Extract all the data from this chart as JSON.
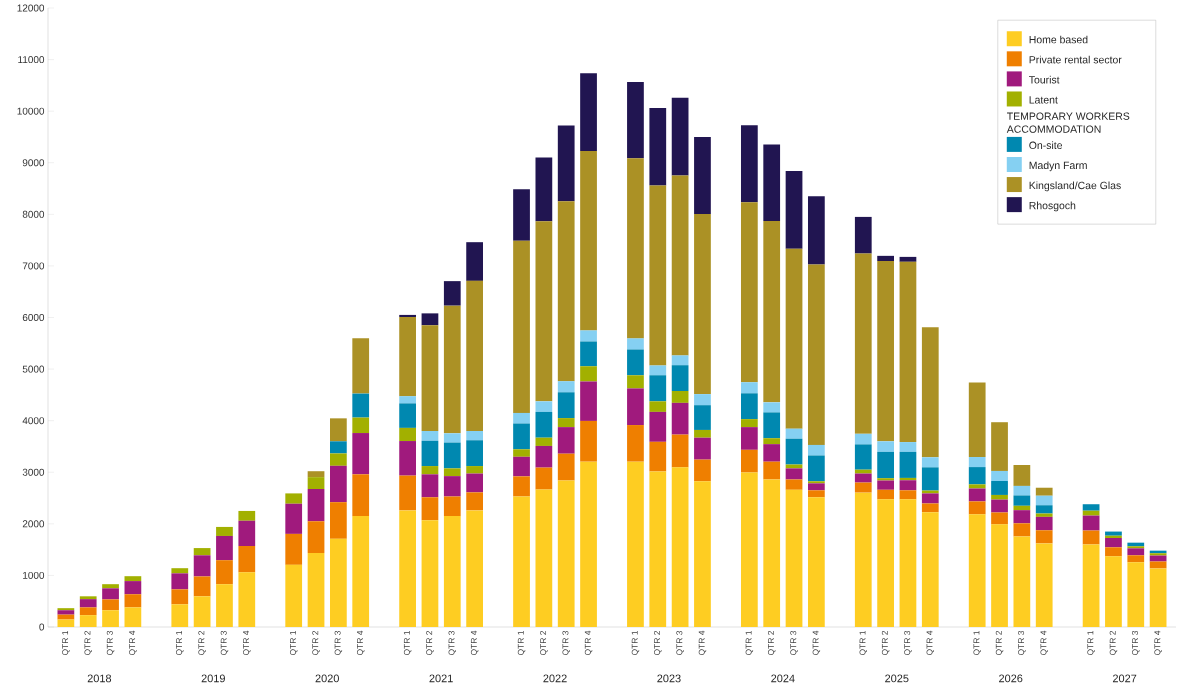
{
  "chart_data": {
    "type": "bar",
    "stacked": true,
    "categories": [
      "QTR 1",
      "QTR 2",
      "QTR 3",
      "QTR 4",
      "QTR 1",
      "QTR 2",
      "QTR 3",
      "QTR 4",
      "QTR 1",
      "QTR 2",
      "QTR 3",
      "QTR 4",
      "QTR 1",
      "QTR 2",
      "QTR 3",
      "QTR 4",
      "QTR 1",
      "QTR 2",
      "QTR 3",
      "QTR 4",
      "QTR 1",
      "QTR 2",
      "QTR 3",
      "QTR 4",
      "QTR 1",
      "QTR 2",
      "QTR 3",
      "QTR 4",
      "QTR 1",
      "QTR 2",
      "QTR 3",
      "QTR 4",
      "QTR 1",
      "QTR 2",
      "QTR 3",
      "QTR 4",
      "QTR 1",
      "QTR 2",
      "QTR 3",
      "QTR 4"
    ],
    "series": [
      {
        "name": "Home based",
        "color": "#fecd22",
        "values": [
          145,
          230,
          325,
          380,
          440,
          595,
          830,
          1060,
          1205,
          1435,
          1710,
          2150,
          2260,
          2070,
          2150,
          2260,
          2530,
          2665,
          2840,
          3205,
          3205,
          3015,
          3095,
          2825,
          2995,
          2860,
          2660,
          2515,
          2605,
          2475,
          2475,
          2225,
          2185,
          1990,
          1755,
          1620,
          1600,
          1370,
          1255,
          1135
        ]
      },
      {
        "name": "Private rental sector",
        "color": "#ef7f00",
        "values": [
          95,
          150,
          210,
          255,
          290,
          385,
          465,
          510,
          600,
          615,
          710,
          810,
          675,
          445,
          380,
          350,
          390,
          425,
          520,
          790,
          710,
          575,
          635,
          420,
          440,
          345,
          200,
          135,
          195,
          185,
          175,
          170,
          250,
          230,
          255,
          255,
          270,
          175,
          135,
          135
        ]
      },
      {
        "name": "Tourist",
        "color": "#a01a7d",
        "values": [
          85,
          160,
          215,
          255,
          310,
          410,
          470,
          490,
          585,
          625,
          705,
          800,
          670,
          445,
          395,
          365,
          380,
          420,
          515,
          765,
          710,
          580,
          615,
          425,
          440,
          340,
          215,
          135,
          175,
          180,
          195,
          195,
          250,
          250,
          255,
          260,
          290,
          180,
          135,
          115
        ]
      },
      {
        "name": "Latent",
        "color": "#a2b000",
        "values": [
          40,
          55,
          80,
          95,
          100,
          140,
          175,
          190,
          200,
          230,
          240,
          300,
          255,
          160,
          150,
          145,
          145,
          160,
          175,
          295,
          255,
          205,
          230,
          150,
          155,
          115,
          75,
          40,
          75,
          45,
          45,
          55,
          80,
          90,
          85,
          65,
          95,
          45,
          40,
          45
        ]
      },
      {
        "name": "On-site",
        "color": "#0088b0",
        "values": [
          0,
          0,
          0,
          0,
          0,
          0,
          0,
          0,
          0,
          0,
          235,
          465,
          475,
          490,
          500,
          500,
          500,
          500,
          500,
          480,
          500,
          505,
          500,
          480,
          500,
          500,
          500,
          500,
          490,
          510,
          505,
          450,
          335,
          270,
          200,
          160,
          125,
          80,
          70,
          50
        ]
      },
      {
        "name": "Madyn Farm",
        "color": "#85d0f2",
        "values": [
          0,
          0,
          0,
          0,
          0,
          0,
          0,
          0,
          0,
          0,
          0,
          0,
          140,
          190,
          180,
          180,
          205,
          205,
          215,
          215,
          215,
          190,
          190,
          215,
          215,
          195,
          195,
          205,
          205,
          205,
          190,
          195,
          195,
          195,
          185,
          185,
          0,
          0,
          0,
          0
        ]
      },
      {
        "name": "Kingsland/Cae Glas",
        "color": "#ab9125",
        "values": [
          0,
          0,
          0,
          0,
          0,
          0,
          0,
          0,
          0,
          115,
          445,
          1075,
          1535,
          2050,
          2475,
          2910,
          3340,
          3490,
          3490,
          3480,
          3490,
          3490,
          3490,
          3490,
          3490,
          3515,
          3490,
          3495,
          3495,
          3495,
          3495,
          2520,
          1445,
          945,
          405,
          155,
          0,
          0,
          0,
          0
        ]
      },
      {
        "name": "Rhosgoch",
        "color": "#211551",
        "values": [
          0,
          0,
          0,
          0,
          0,
          0,
          0,
          0,
          0,
          0,
          0,
          0,
          40,
          230,
          475,
          750,
          995,
          1235,
          1465,
          1505,
          1480,
          1500,
          1505,
          1495,
          1490,
          1485,
          1505,
          1325,
          710,
          100,
          95,
          0,
          0,
          0,
          0,
          0,
          0,
          0,
          0,
          0
        ]
      }
    ],
    "ylim": [
      0,
      12000
    ],
    "yticks": [
      0,
      1000,
      2000,
      3000,
      4000,
      5000,
      6000,
      7000,
      8000,
      9000,
      10000,
      11000,
      12000
    ],
    "legend": "top right",
    "legend_title": "TEMPORARY WORKERS ACCOMMODATION",
    "annotations": [
      "2018",
      "2019",
      "2020",
      "2021",
      "2022",
      "2023",
      "2024",
      "2025",
      "2026",
      "2027"
    ]
  }
}
